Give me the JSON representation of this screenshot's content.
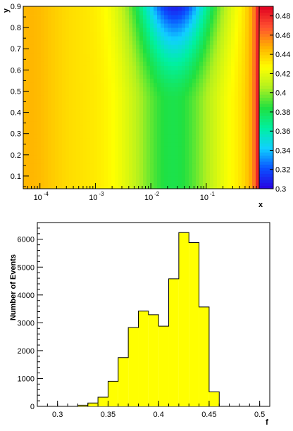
{
  "chart_data": [
    {
      "type": "heatmap",
      "title": "",
      "xlabel": "x",
      "ylabel": "y",
      "x_scale": "log",
      "xlim": [
        5e-05,
        0.9
      ],
      "ylim": [
        0.04,
        0.9
      ],
      "x_ticks": [
        {
          "value": 0.0001,
          "base": "10",
          "exp": "-4"
        },
        {
          "value": 0.001,
          "base": "10",
          "exp": "-3"
        },
        {
          "value": 0.01,
          "base": "10",
          "exp": "-2"
        },
        {
          "value": 0.1,
          "base": "10",
          "exp": "-1"
        }
      ],
      "y_ticks": [
        {
          "value": 0.1,
          "label": "0.1"
        },
        {
          "value": 0.2,
          "label": "0.2"
        },
        {
          "value": 0.3,
          "label": "0.3"
        },
        {
          "value": 0.4,
          "label": "0.4"
        },
        {
          "value": 0.5,
          "label": "0.5"
        },
        {
          "value": 0.6,
          "label": "0.6"
        },
        {
          "value": 0.7,
          "label": "0.7"
        },
        {
          "value": 0.8,
          "label": "0.8"
        },
        {
          "value": 0.9,
          "label": "0.9"
        }
      ],
      "zlim": [
        0.3,
        0.49
      ],
      "z_ticks": [
        {
          "value": 0.3,
          "label": "0.3"
        },
        {
          "value": 0.32,
          "label": "0.32"
        },
        {
          "value": 0.34,
          "label": "0.34"
        },
        {
          "value": 0.36,
          "label": "0.36"
        },
        {
          "value": 0.38,
          "label": "0.38"
        },
        {
          "value": 0.4,
          "label": "0.4"
        },
        {
          "value": 0.42,
          "label": "0.42"
        },
        {
          "value": 0.44,
          "label": "0.44"
        },
        {
          "value": 0.46,
          "label": "0.46"
        },
        {
          "value": 0.48,
          "label": "0.48"
        }
      ],
      "grid": false,
      "colormap": [
        "#2a00e0",
        "#0a50ff",
        "#10d0ff",
        "#00f0a0",
        "#20e040",
        "#b0f020",
        "#ffff00",
        "#ffb000",
        "#ff5030",
        "#e00020"
      ]
    },
    {
      "type": "bar",
      "subtype": "histogram",
      "title": "",
      "xlabel": "f",
      "ylabel": "Number of Events",
      "bin_edges": [
        0.3,
        0.31,
        0.32,
        0.33,
        0.34,
        0.35,
        0.36,
        0.37,
        0.38,
        0.39,
        0.4,
        0.41,
        0.42,
        0.43,
        0.44,
        0.45,
        0.46,
        0.47,
        0.48,
        0.49,
        0.5,
        0.51
      ],
      "values": [
        0,
        0,
        40,
        120,
        330,
        900,
        1750,
        2830,
        3420,
        3290,
        2880,
        4580,
        6240,
        5880,
        3570,
        520,
        0,
        0,
        0,
        0,
        0
      ],
      "xlim": [
        0.28,
        0.51
      ],
      "ylim": [
        0,
        6600
      ],
      "x_ticks": [
        {
          "value": 0.3,
          "label": "0.3"
        },
        {
          "value": 0.35,
          "label": "0.35"
        },
        {
          "value": 0.4,
          "label": "0.4"
        },
        {
          "value": 0.45,
          "label": "0.45"
        },
        {
          "value": 0.5,
          "label": "0.5"
        }
      ],
      "y_ticks": [
        {
          "value": 0,
          "label": "0"
        },
        {
          "value": 1000,
          "label": "1000"
        },
        {
          "value": 2000,
          "label": "2000"
        },
        {
          "value": 3000,
          "label": "3000"
        },
        {
          "value": 4000,
          "label": "4000"
        },
        {
          "value": 5000,
          "label": "5000"
        },
        {
          "value": 6000,
          "label": "6000"
        }
      ],
      "fill_color": "#ffff00",
      "line_color": "#000000",
      "grid": false,
      "legend": "none"
    }
  ]
}
